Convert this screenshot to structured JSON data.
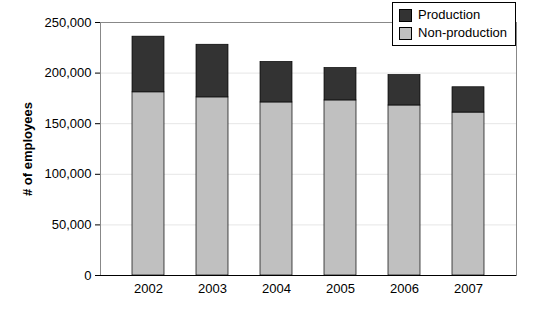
{
  "chart_data": {
    "type": "bar",
    "stacked": true,
    "y_label": "# of employees",
    "categories": [
      "2002",
      "2003",
      "2004",
      "2005",
      "2006",
      "2007"
    ],
    "series": [
      {
        "name": "Non-production",
        "color": "#c0c0c0",
        "values": [
          181000,
          176000,
          171000,
          173000,
          168000,
          161000
        ]
      },
      {
        "name": "Production",
        "color": "#333333",
        "values": [
          55000,
          52000,
          40000,
          32000,
          30000,
          25000
        ]
      }
    ],
    "ylim": [
      0,
      250000
    ],
    "yticks": [
      0,
      {
        "value": 50000,
        "label": "50,000"
      },
      {
        "value": 100000,
        "label": "100,000"
      },
      {
        "value": 150000,
        "label": "150,000"
      },
      {
        "value": 200000,
        "label": "200,000"
      },
      {
        "value": 250000,
        "label": "250,000"
      }
    ],
    "grid": true,
    "legend": "top-right"
  }
}
